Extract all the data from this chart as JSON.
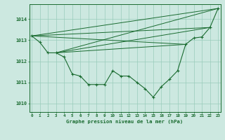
{
  "xlabel": "Graphe pression niveau de la mer (hPa)",
  "bg_color": "#cce8e0",
  "grid_color": "#99ccbb",
  "line_color": "#1a6b30",
  "x_ticks": [
    0,
    1,
    2,
    3,
    4,
    5,
    6,
    7,
    8,
    9,
    10,
    11,
    12,
    13,
    14,
    15,
    16,
    17,
    18,
    19,
    20,
    21,
    22,
    23
  ],
  "y_ticks": [
    1010,
    1011,
    1012,
    1013,
    1014
  ],
  "ylim": [
    1009.6,
    1014.7
  ],
  "xlim": [
    -0.3,
    23.3
  ],
  "main_series": [
    1013.2,
    1012.9,
    1012.4,
    1012.4,
    1012.2,
    1011.4,
    1011.3,
    1010.9,
    1010.9,
    1010.9,
    1011.55,
    1011.3,
    1011.3,
    1011.0,
    1010.7,
    1010.3,
    1010.8,
    1011.15,
    1011.55,
    1012.8,
    1013.1,
    1013.15,
    1013.6,
    1014.5
  ],
  "fan_lines": [
    [
      0,
      1013.2,
      23,
      1014.5
    ],
    [
      0,
      1013.2,
      22,
      1013.6
    ],
    [
      0,
      1013.2,
      19,
      1012.8
    ],
    [
      3,
      1012.4,
      23,
      1014.5
    ],
    [
      3,
      1012.4,
      22,
      1013.6
    ],
    [
      3,
      1012.4,
      19,
      1012.8
    ]
  ]
}
